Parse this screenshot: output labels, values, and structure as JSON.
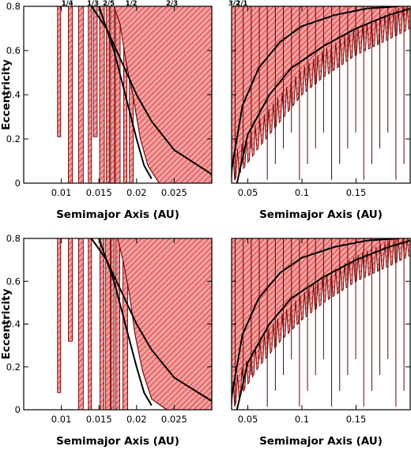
{
  "chart_data": [
    {
      "type": "area",
      "panel": "top-left",
      "xlabel": "Semimajor Axis (AU)",
      "ylabel": "Eccentricity",
      "xlim": [
        0.005,
        0.03
      ],
      "ylim": [
        0,
        0.8
      ],
      "xticks": [
        0.01,
        0.015,
        0.02,
        0.025
      ],
      "xtick_labels": [
        "0.01",
        "0.015",
        "0.02",
        "0.025"
      ],
      "yticks": [
        0,
        0.2,
        0.4,
        0.6,
        0.8
      ],
      "ytick_labels": [
        "0",
        "0.2",
        "0.4",
        "0.6",
        "0.8"
      ],
      "resonance_labels": [
        {
          "text": "1/4",
          "x": 0.0108
        },
        {
          "text": "1/3",
          "x": 0.0142
        },
        {
          "text": "2/5",
          "x": 0.0163
        },
        {
          "text": "1/2",
          "x": 0.0193
        },
        {
          "text": "2/3",
          "x": 0.0247
        }
      ],
      "unstable_band_edges": [
        0.0095,
        0.0113,
        0.0127,
        0.0137,
        0.0147,
        0.0155,
        0.0162,
        0.0168,
        0.0175,
        0.0186,
        0.0195,
        0.0205,
        0.0225
      ],
      "unstable_bands": [
        {
          "x": 0.0097,
          "y_min": 0.21
        },
        {
          "x": 0.0112,
          "y_min": 0.0
        },
        {
          "x": 0.0126,
          "y_min": 0.0
        },
        {
          "x": 0.0138,
          "y_min": 0.0
        },
        {
          "x": 0.0145,
          "y_min": 0.21
        },
        {
          "x": 0.0154,
          "y_min": 0.0
        },
        {
          "x": 0.0162,
          "y_min": 0.0
        },
        {
          "x": 0.0168,
          "y_min": 0.0
        },
        {
          "x": 0.0175,
          "y_min": 0.0
        },
        {
          "x": 0.0185,
          "y_min": 0.0
        },
        {
          "x": 0.0193,
          "y_min": 0.0
        }
      ],
      "chaotic_boundary": {
        "x": [
          0.017,
          0.0178,
          0.0186,
          0.0195,
          0.0205,
          0.0215,
          0.023,
          0.025,
          0.027,
          0.03
        ],
        "y": [
          0.8,
          0.72,
          0.55,
          0.4,
          0.2,
          0.08,
          0.0,
          0.0,
          0.0,
          0.0
        ]
      },
      "curves": [
        {
          "x": [
            0.014,
            0.016,
            0.018,
            0.02,
            0.022,
            0.025,
            0.03
          ],
          "y": [
            0.8,
            0.7,
            0.55,
            0.4,
            0.28,
            0.15,
            0.04
          ]
        },
        {
          "x": [
            0.015,
            0.017,
            0.0185,
            0.02,
            0.021,
            0.022
          ],
          "y": [
            0.8,
            0.6,
            0.4,
            0.2,
            0.08,
            0.02
          ]
        }
      ]
    },
    {
      "type": "area",
      "panel": "top-right",
      "xlabel": "Semimajor Axis (AU)",
      "xlim": [
        0.035,
        0.2
      ],
      "ylim": [
        0,
        0.8
      ],
      "xticks": [
        0.05,
        0.1,
        0.15
      ],
      "xtick_labels": [
        "0.05",
        "0.1",
        "0.15"
      ],
      "yticks": [
        0,
        0.2,
        0.4,
        0.6,
        0.8
      ],
      "resonance_labels": [
        {
          "text": "5/3",
          "x": 0.041,
          "row": 1
        },
        {
          "text": "3/2",
          "x": 0.0375,
          "row": 2
        },
        {
          "text": "2/1",
          "x": 0.0445,
          "row": 2
        }
      ],
      "stability_boundary": {
        "x": [
          0.035,
          0.045,
          0.06,
          0.08,
          0.1,
          0.12,
          0.15,
          0.18,
          0.2
        ],
        "y": [
          0.0,
          0.06,
          0.16,
          0.28,
          0.4,
          0.48,
          0.58,
          0.65,
          0.7
        ]
      },
      "curves": [
        {
          "x": [
            0.035,
            0.045,
            0.06,
            0.08,
            0.1,
            0.13,
            0.16,
            0.19
          ],
          "y": [
            0.06,
            0.35,
            0.52,
            0.64,
            0.71,
            0.76,
            0.79,
            0.8
          ]
        },
        {
          "x": [
            0.04,
            0.05,
            0.07,
            0.09,
            0.12,
            0.15,
            0.18,
            0.2
          ],
          "y": [
            0.0,
            0.22,
            0.4,
            0.52,
            0.62,
            0.7,
            0.76,
            0.79
          ]
        }
      ]
    },
    {
      "type": "area",
      "panel": "bottom-left",
      "xlabel": "Semimajor Axis (AU)",
      "ylabel": "Eccentricity",
      "xlim": [
        0.005,
        0.03
      ],
      "ylim": [
        0,
        0.8
      ],
      "xticks": [
        0.01,
        0.015,
        0.02,
        0.025
      ],
      "xtick_labels": [
        "0.01",
        "0.015",
        "0.02",
        "0.025"
      ],
      "yticks": [
        0,
        0.2,
        0.4,
        0.6,
        0.8
      ],
      "ytick_labels": [
        "0",
        "0.2",
        "0.4",
        "0.6",
        "0.8"
      ],
      "unstable_bands": [
        {
          "x": 0.0097,
          "y_min": 0.08
        },
        {
          "x": 0.0112,
          "y_min": 0.32
        },
        {
          "x": 0.0126,
          "y_min": 0.0
        },
        {
          "x": 0.0138,
          "y_min": 0.0
        },
        {
          "x": 0.0154,
          "y_min": 0.0
        },
        {
          "x": 0.0162,
          "y_min": 0.0
        },
        {
          "x": 0.0168,
          "y_min": 0.0
        },
        {
          "x": 0.0175,
          "y_min": 0.0
        },
        {
          "x": 0.0185,
          "y_min": 0.0
        }
      ],
      "chaotic_boundary": {
        "x": [
          0.0175,
          0.0183,
          0.019,
          0.0198,
          0.0208,
          0.022,
          0.024,
          0.027,
          0.03
        ],
        "y": [
          0.8,
          0.68,
          0.55,
          0.35,
          0.18,
          0.05,
          0.0,
          0.0,
          0.0
        ]
      },
      "curves": [
        {
          "x": [
            0.014,
            0.016,
            0.018,
            0.02,
            0.022,
            0.025,
            0.03
          ],
          "y": [
            0.8,
            0.7,
            0.55,
            0.4,
            0.28,
            0.15,
            0.04
          ]
        },
        {
          "x": [
            0.015,
            0.017,
            0.0185,
            0.02,
            0.021,
            0.022
          ],
          "y": [
            0.8,
            0.6,
            0.4,
            0.2,
            0.08,
            0.02
          ]
        }
      ]
    },
    {
      "type": "area",
      "panel": "bottom-right",
      "xlabel": "Semimajor Axis (AU)",
      "xlim": [
        0.035,
        0.2
      ],
      "ylim": [
        0,
        0.8
      ],
      "xticks": [
        0.05,
        0.1,
        0.15
      ],
      "xtick_labels": [
        "0.05",
        "0.1",
        "0.15"
      ],
      "yticks": [
        0,
        0.2,
        0.4,
        0.6,
        0.8
      ],
      "stability_boundary": {
        "x": [
          0.035,
          0.045,
          0.06,
          0.08,
          0.1,
          0.12,
          0.15,
          0.18,
          0.2
        ],
        "y": [
          0.0,
          0.08,
          0.2,
          0.32,
          0.42,
          0.5,
          0.6,
          0.67,
          0.72
        ]
      },
      "curves": [
        {
          "x": [
            0.035,
            0.045,
            0.06,
            0.08,
            0.1,
            0.13,
            0.16,
            0.19
          ],
          "y": [
            0.06,
            0.35,
            0.52,
            0.64,
            0.71,
            0.76,
            0.79,
            0.8
          ]
        },
        {
          "x": [
            0.04,
            0.05,
            0.07,
            0.09,
            0.12,
            0.15,
            0.18,
            0.2
          ],
          "y": [
            0.0,
            0.22,
            0.4,
            0.52,
            0.62,
            0.7,
            0.76,
            0.79
          ]
        }
      ]
    }
  ],
  "colors": {
    "hatch_fill": "#f0a0a0",
    "hatch_line": "#e02020",
    "edge": "#6e0000",
    "curve": "#000000"
  }
}
